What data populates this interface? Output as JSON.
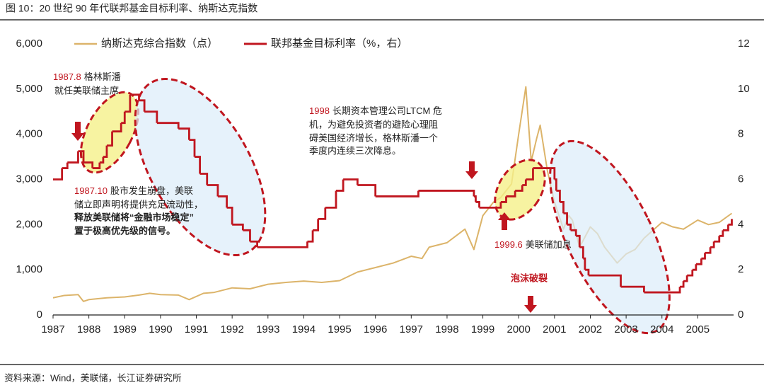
{
  "chart_data": {
    "type": "line",
    "title": "图 10：20 世纪 90 年代联邦基金目标利率、纳斯达克指数",
    "source": "资料来源：Wind，美联储，长江证券研究所",
    "xlim": [
      1987,
      2006
    ],
    "xticks": [
      1987,
      1988,
      1989,
      1990,
      1991,
      1992,
      1993,
      1994,
      1995,
      1996,
      1997,
      1998,
      1999,
      2000,
      2001,
      2002,
      2003,
      2004,
      2005
    ],
    "ylim": [
      0,
      6000
    ],
    "yticks": [
      0,
      {
        "value": 1000,
        "label": "1,000"
      },
      {
        "value": 2000,
        "label": "2,000"
      },
      {
        "value": 3000,
        "label": "3,000"
      },
      {
        "value": 4000,
        "label": "4,000"
      },
      {
        "value": 5000,
        "label": "5,000"
      },
      {
        "value": 6000,
        "label": "6,000"
      }
    ],
    "y2lim": [
      0,
      12
    ],
    "y2ticks": [
      0,
      2,
      4,
      6,
      8,
      10,
      12
    ],
    "series": [
      {
        "name": "纳斯达克综合指数（点）",
        "color": "#dcb46a",
        "x": [
          1987.0,
          1987.3,
          1987.7,
          1987.85,
          1988.0,
          1988.5,
          1989.0,
          1989.4,
          1989.7,
          1990.0,
          1990.5,
          1990.8,
          1991.2,
          1991.5,
          1992.0,
          1992.5,
          1993.0,
          1993.5,
          1994.0,
          1994.5,
          1995.0,
          1995.5,
          1996.0,
          1996.5,
          1997.0,
          1997.3,
          1997.5,
          1998.0,
          1998.5,
          1998.75,
          1999.0,
          1999.3,
          1999.5,
          1999.8,
          2000.0,
          2000.2,
          2000.35,
          2000.5,
          2000.6,
          2000.8,
          2001.0,
          2001.25,
          2001.4,
          2001.5,
          2001.7,
          2002.0,
          2002.2,
          2002.4,
          2002.75,
          2003.0,
          2003.25,
          2003.5,
          2004.0,
          2004.3,
          2004.6,
          2005.0,
          2005.3,
          2005.6,
          2005.95
        ],
        "values": [
          380,
          430,
          450,
          300,
          340,
          380,
          400,
          440,
          480,
          450,
          440,
          340,
          480,
          500,
          600,
          580,
          680,
          720,
          750,
          720,
          760,
          950,
          1050,
          1150,
          1300,
          1250,
          1500,
          1600,
          1900,
          1450,
          2200,
          2500,
          2600,
          2900,
          4000,
          5050,
          3400,
          3900,
          4200,
          3200,
          2500,
          1900,
          2200,
          2100,
          1500,
          1950,
          1800,
          1500,
          1150,
          1350,
          1450,
          1700,
          2050,
          1950,
          1900,
          2100,
          2000,
          2050,
          2250
        ]
      },
      {
        "name": "联邦基金目标利率（%，右）",
        "color": "#c0161f",
        "axis": "y2",
        "step": "post",
        "x": [
          1987.0,
          1987.25,
          1987.4,
          1987.7,
          1987.85,
          1988.1,
          1988.3,
          1988.4,
          1988.5,
          1988.65,
          1988.9,
          1989.0,
          1989.15,
          1989.4,
          1989.55,
          1989.9,
          1990.5,
          1990.8,
          1990.95,
          1991.1,
          1991.3,
          1991.6,
          1991.85,
          1992.0,
          1992.3,
          1992.5,
          1992.7,
          1994.1,
          1994.25,
          1994.4,
          1994.6,
          1994.9,
          1995.1,
          1995.5,
          1996.0,
          1997.2,
          1998.75,
          1998.8,
          1998.9,
          1999.5,
          1999.65,
          1999.9,
          2000.1,
          2000.2,
          2000.4,
          2001.0,
          2001.05,
          2001.15,
          2001.25,
          2001.35,
          2001.45,
          2001.6,
          2001.7,
          2001.8,
          2001.85,
          2001.95,
          2002.85,
          2003.5,
          2004.5,
          2004.6,
          2004.7,
          2004.85,
          2004.95,
          2005.1,
          2005.2,
          2005.35,
          2005.45,
          2005.6,
          2005.7,
          2005.85,
          2005.95
        ],
        "values": [
          6,
          6.5,
          6.75,
          7.25,
          6.75,
          6.5,
          6.75,
          7,
          7.5,
          8.125,
          8.5,
          9,
          9.75,
          9.5,
          9,
          8.5,
          8.25,
          7.75,
          7,
          6.25,
          5.75,
          5.25,
          4.75,
          4,
          3.75,
          3.25,
          3,
          3.25,
          3.75,
          4.25,
          4.75,
          5.5,
          6,
          5.75,
          5.25,
          5.5,
          5.25,
          5,
          4.75,
          5,
          5.25,
          5.5,
          5.75,
          6,
          6.5,
          6,
          5.5,
          5,
          4.5,
          4,
          3.75,
          3.5,
          3,
          2.5,
          2,
          1.75,
          1.25,
          1,
          1.25,
          1.5,
          1.75,
          2,
          2.25,
          2.5,
          2.75,
          3,
          3.25,
          3.5,
          3.75,
          4,
          4.25
        ]
      }
    ],
    "annotations": [
      {
        "date": "1987.8",
        "lines": [
          "格林斯潘",
          "就任美联储主席"
        ]
      },
      {
        "date": "1987.10",
        "lines": [
          "股市发生崩盘，美联",
          "储立即声明将提供充足流动性，"
        ],
        "bold_lines": [
          "释放美联储将“金融市场稳定”",
          "置于极高优先级的信号。"
        ]
      },
      {
        "date": "1998",
        "lines": [
          "长期资本管理公司LTCM 危",
          "机，为避免投资者的避险心理阻",
          "碍美国经济增长，格林斯潘一个",
          "季度内连续三次降息。"
        ]
      },
      {
        "date": "1999.6",
        "lines": [
          "美联储加息"
        ]
      },
      {
        "text": "泡沫破裂"
      }
    ]
  }
}
